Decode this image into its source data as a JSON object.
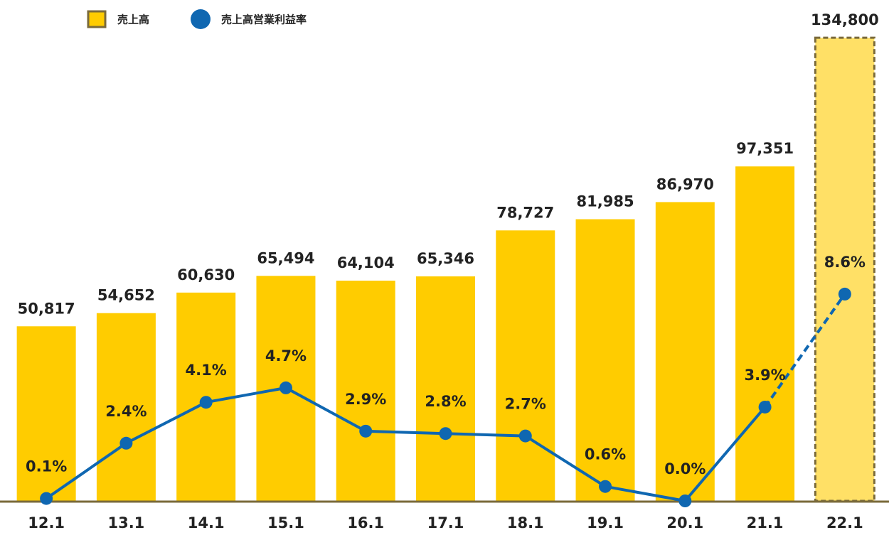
{
  "chart_data": {
    "type": "bar+line",
    "categories": [
      "12.1",
      "13.1",
      "14.1",
      "15.1",
      "16.1",
      "17.1",
      "18.1",
      "19.1",
      "20.1",
      "21.1",
      "22.1"
    ],
    "series": [
      {
        "name": "売上高",
        "type": "bar",
        "color": "#FFCC00",
        "colors": [
          "#FFCC00",
          "#FFCC00",
          "#FFCC00",
          "#FFCC00",
          "#FFCC00",
          "#FFCC00",
          "#FFCC00",
          "#FFCC00",
          "#FFCC00",
          "#FFCC00",
          "#FFE066"
        ],
        "edge_colors": [
          null,
          null,
          null,
          null,
          null,
          null,
          null,
          null,
          null,
          null,
          "#7A6A3A"
        ],
        "label_colors": [
          "#222222",
          "#222222",
          "#222222",
          "#222222",
          "#222222",
          "#222222",
          "#222222",
          "#222222",
          "#222222",
          "#222222",
          "#1A1AAA"
        ],
        "values": [
          50817,
          54652,
          60630,
          65494,
          64104,
          65346,
          78727,
          81985,
          86970,
          97351,
          134800
        ],
        "value_labels": [
          "50,817",
          "54,652",
          "60,630",
          "65,494",
          "64,104",
          "65,346",
          "78,727",
          "81,985",
          "86,970",
          "97,351",
          "134,800"
        ]
      },
      {
        "name": "売上高営業利益率",
        "type": "line",
        "axis": "y2",
        "color": "#0F67B1",
        "segment_styles": [
          "solid",
          "solid",
          "solid",
          "solid",
          "solid",
          "solid",
          "solid",
          "solid",
          "solid",
          "dashed"
        ],
        "label_colors": [
          "#222222",
          "#222222",
          "#222222",
          "#222222",
          "#222222",
          "#222222",
          "#222222",
          "#222222",
          "#222222",
          "#222222",
          "#1A1AAA"
        ],
        "values": [
          0.1,
          2.4,
          4.1,
          4.7,
          2.9,
          2.8,
          2.7,
          0.6,
          0.0,
          3.9,
          8.6
        ],
        "value_labels": [
          "0.1%",
          "2.4%",
          "4.1%",
          "4.7%",
          "2.9%",
          "2.8%",
          "2.7%",
          "0.6%",
          "0.0%",
          "3.9%",
          "8.6%"
        ]
      }
    ],
    "ylim": [
      0,
      140000
    ],
    "y2lim": [
      0,
      20
    ],
    "legend": "top-left"
  }
}
